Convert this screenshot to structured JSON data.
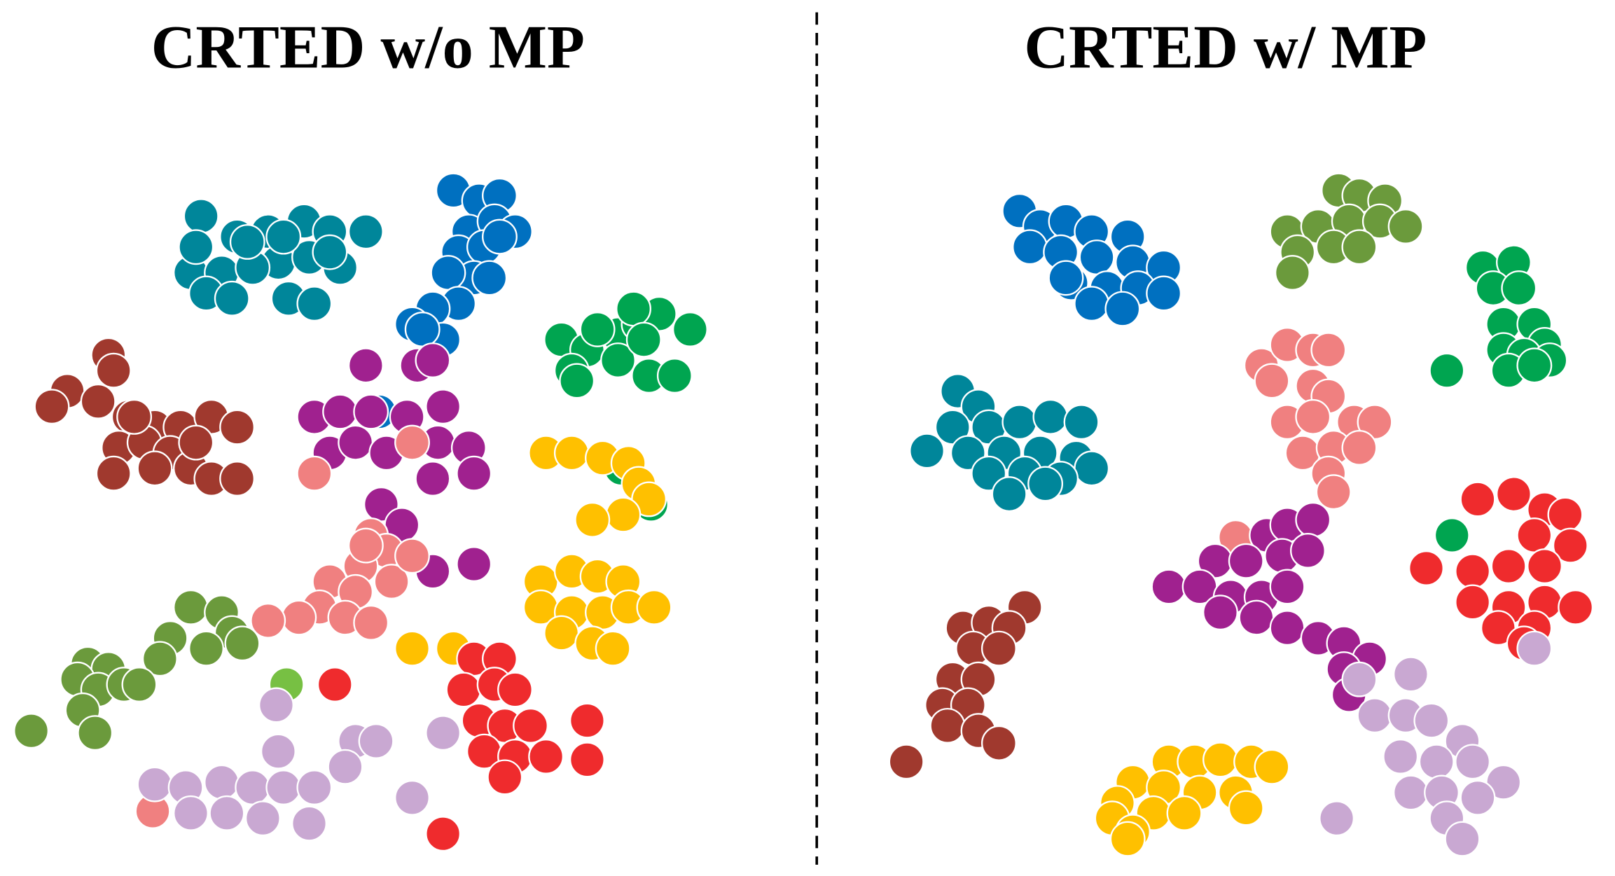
{
  "chart_data": [
    {
      "type": "scatter",
      "title": "CRTED w/o MP",
      "xlim": [
        0,
        780
      ],
      "ylim": [
        850,
        140
      ],
      "series": [
        {
          "color": "#00869a",
          "x": [
            195,
            230,
            185,
            215,
            200,
            225,
            260,
            295,
            320,
            355,
            270,
            300,
            330,
            245,
            280,
            305,
            190,
            240,
            275,
            320
          ],
          "y": [
            210,
            230,
            265,
            265,
            285,
            290,
            225,
            215,
            225,
            225,
            255,
            250,
            260,
            260,
            290,
            295,
            240,
            235,
            230,
            245
          ]
        },
        {
          "color": "#0070c0",
          "x": [
            440,
            465,
            485,
            455,
            480,
            500,
            445,
            470,
            460,
            435,
            475,
            445,
            420,
            400,
            430,
            410,
            485,
            368
          ],
          "y": [
            185,
            195,
            190,
            225,
            215,
            225,
            245,
            240,
            270,
            265,
            270,
            295,
            300,
            315,
            330,
            320,
            230,
            400
          ]
        },
        {
          "color": "#00a550",
          "x": [
            545,
            570,
            555,
            600,
            620,
            640,
            670,
            600,
            630,
            655,
            580,
            615,
            560,
            625,
            603,
            632
          ],
          "y": [
            330,
            340,
            360,
            325,
            315,
            305,
            320,
            350,
            365,
            365,
            320,
            300,
            370,
            330,
            455,
            490
          ]
        },
        {
          "color": "#a0392e",
          "x": [
            105,
            110,
            65,
            50,
            95,
            125,
            150,
            175,
            205,
            230,
            115,
            140,
            165,
            110,
            150,
            185,
            205,
            230,
            130,
            190
          ],
          "y": [
            345,
            360,
            380,
            395,
            390,
            405,
            415,
            415,
            405,
            415,
            435,
            430,
            440,
            460,
            455,
            455,
            465,
            465,
            405,
            430
          ]
        },
        {
          "color": "#a0218f",
          "x": [
            355,
            405,
            420,
            305,
            330,
            360,
            395,
            430,
            320,
            345,
            375,
            425,
            455,
            460,
            420,
            370,
            390,
            420,
            460
          ],
          "y": [
            355,
            355,
            350,
            405,
            400,
            400,
            405,
            395,
            440,
            430,
            440,
            430,
            435,
            460,
            465,
            490,
            510,
            555,
            548
          ]
        },
        {
          "color": "#f08080",
          "x": [
            400,
            305,
            360,
            375,
            350,
            320,
            345,
            380,
            400,
            310,
            335,
            360,
            290,
            260,
            355,
            148
          ],
          "y": [
            430,
            460,
            520,
            535,
            550,
            565,
            575,
            565,
            540,
            590,
            600,
            605,
            600,
            603,
            530,
            788
          ]
        },
        {
          "color": "#ffc000",
          "x": [
            530,
            555,
            585,
            610,
            620,
            630,
            605,
            575,
            525,
            555,
            580,
            605,
            525,
            555,
            585,
            610,
            635,
            545,
            575,
            595,
            400,
            440
          ],
          "y": [
            440,
            440,
            445,
            450,
            470,
            485,
            500,
            505,
            565,
            555,
            560,
            565,
            590,
            595,
            595,
            590,
            590,
            615,
            625,
            630,
            630,
            630
          ]
        },
        {
          "color": "#6b9a3c",
          "x": [
            185,
            215,
            225,
            165,
            200,
            235,
            155,
            85,
            105,
            75,
            95,
            120,
            135,
            80,
            30,
            92
          ],
          "y": [
            590,
            595,
            615,
            620,
            630,
            625,
            640,
            645,
            650,
            660,
            670,
            665,
            665,
            690,
            710,
            712
          ]
        },
        {
          "color": "#77c043",
          "x": [
            278
          ],
          "y": [
            665
          ]
        },
        {
          "color": "#ef2b2d",
          "x": [
            325,
            460,
            485,
            450,
            480,
            500,
            465,
            490,
            515,
            470,
            500,
            530,
            490,
            570,
            570,
            430
          ],
          "y": [
            665,
            640,
            640,
            670,
            665,
            670,
            700,
            705,
            705,
            730,
            735,
            735,
            755,
            700,
            738,
            810
          ]
        },
        {
          "color": "#c9a8d2",
          "x": [
            268,
            430,
            345,
            365,
            270,
            335,
            150,
            180,
            215,
            245,
            275,
            305,
            185,
            220,
            255,
            300,
            400
          ],
          "y": [
            685,
            712,
            720,
            720,
            730,
            745,
            762,
            765,
            760,
            765,
            765,
            765,
            790,
            790,
            795,
            800,
            775
          ]
        }
      ]
    },
    {
      "type": "scatter",
      "title": "CRTED w/ MP",
      "xlim": [
        790,
        1568
      ],
      "ylim": [
        850,
        140
      ],
      "series": [
        {
          "color": "#0070c0",
          "x": [
            990,
            1010,
            1035,
            1060,
            1095,
            1000,
            1030,
            1065,
            1100,
            1130,
            1040,
            1075,
            1105,
            1130,
            1060,
            1090,
            1035
          ],
          "y": [
            205,
            220,
            215,
            225,
            230,
            240,
            245,
            250,
            255,
            260,
            275,
            280,
            280,
            285,
            295,
            300,
            270
          ]
        },
        {
          "color": "#6b9a3c",
          "x": [
            1300,
            1320,
            1345,
            1250,
            1280,
            1310,
            1340,
            1365,
            1260,
            1295,
            1320,
            1255
          ],
          "y": [
            185,
            190,
            195,
            225,
            220,
            215,
            215,
            220,
            245,
            240,
            240,
            265
          ]
        },
        {
          "color": "#00a550",
          "x": [
            1440,
            1470,
            1450,
            1475,
            1460,
            1490,
            1500,
            1460,
            1480,
            1505,
            1465,
            1490,
            1405,
            1410
          ],
          "y": [
            260,
            255,
            280,
            280,
            315,
            315,
            335,
            340,
            345,
            350,
            360,
            355,
            360,
            520
          ]
        },
        {
          "color": "#00869a",
          "x": [
            930,
            950,
            925,
            960,
            990,
            1020,
            1050,
            900,
            940,
            975,
            1010,
            1045,
            1060,
            960,
            995,
            1030,
            980,
            1015
          ],
          "y": [
            380,
            395,
            415,
            415,
            410,
            405,
            410,
            438,
            440,
            440,
            440,
            445,
            455,
            460,
            460,
            465,
            480,
            470
          ]
        },
        {
          "color": "#f08080",
          "x": [
            1225,
            1250,
            1275,
            1290,
            1235,
            1275,
            1290,
            1250,
            1275,
            1315,
            1335,
            1265,
            1295,
            1320,
            1290,
            1295,
            1200
          ],
          "y": [
            355,
            335,
            340,
            340,
            370,
            375,
            385,
            410,
            405,
            410,
            410,
            440,
            435,
            435,
            460,
            478,
            522
          ]
        },
        {
          "color": "#ef2b2d",
          "x": [
            1435,
            1470,
            1500,
            1520,
            1490,
            1525,
            1385,
            1430,
            1465,
            1500,
            1430,
            1465,
            1500,
            1530,
            1455,
            1490,
            1480
          ],
          "y": [
            485,
            480,
            495,
            500,
            520,
            530,
            552,
            555,
            550,
            550,
            585,
            590,
            585,
            590,
            610,
            610,
            625
          ]
        },
        {
          "color": "#a0218f",
          "x": [
            1230,
            1250,
            1275,
            1180,
            1210,
            1245,
            1270,
            1135,
            1165,
            1195,
            1225,
            1250,
            1185,
            1220,
            1250,
            1280,
            1305,
            1330,
            1305,
            1310
          ],
          "y": [
            520,
            510,
            505,
            545,
            545,
            540,
            535,
            570,
            570,
            580,
            580,
            570,
            595,
            600,
            610,
            620,
            625,
            640,
            650,
            675
          ]
        },
        {
          "color": "#a0392e",
          "x": [
            995,
            935,
            960,
            980,
            945,
            970,
            925,
            950,
            915,
            940,
            920,
            950,
            970,
            880
          ],
          "y": [
            590,
            610,
            605,
            610,
            630,
            630,
            660,
            660,
            685,
            685,
            705,
            710,
            722,
            740
          ]
        },
        {
          "color": "#c9a8d2",
          "x": [
            1320,
            1370,
            1335,
            1365,
            1390,
            1420,
            1360,
            1395,
            1430,
            1460,
            1370,
            1400,
            1435,
            1405,
            1420,
            1490,
            1298
          ],
          "y": [
            660,
            655,
            695,
            695,
            700,
            720,
            735,
            740,
            740,
            760,
            770,
            770,
            775,
            795,
            815,
            630,
            795
          ]
        },
        {
          "color": "#ffc000",
          "x": [
            1135,
            1160,
            1185,
            1215,
            1235,
            1100,
            1130,
            1165,
            1200,
            1085,
            1120,
            1150,
            1210,
            1080,
            1100,
            1095
          ],
          "y": [
            740,
            740,
            738,
            740,
            745,
            760,
            765,
            770,
            770,
            780,
            790,
            790,
            785,
            795,
            808,
            815
          ]
        }
      ]
    }
  ]
}
